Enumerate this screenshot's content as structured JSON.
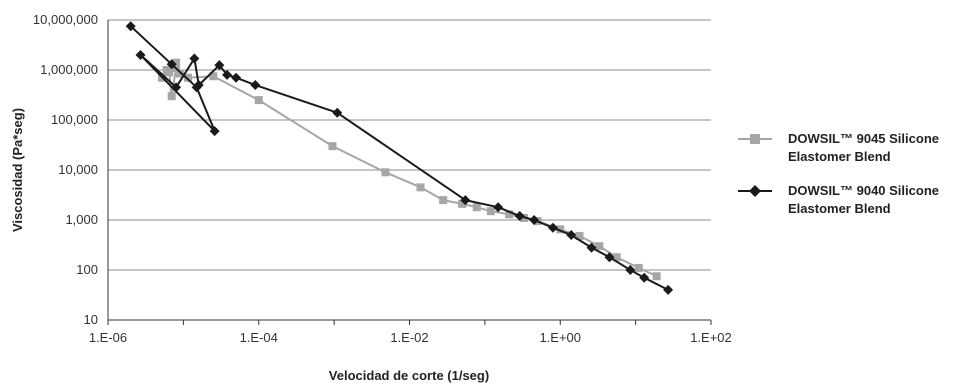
{
  "chart_data": {
    "type": "line",
    "title": "",
    "xlabel": "Velocidad de corte (1/seg)",
    "ylabel": "Viscosidad (Pa*seg)",
    "x_scale": "log",
    "y_scale": "log",
    "xlim": [
      1e-06,
      100
    ],
    "ylim": [
      10,
      10000000
    ],
    "grid": "horizontal",
    "legend_position": "right",
    "x_ticks": [
      "1.E-06",
      "1.E-04",
      "1.E-02",
      "1.E+00",
      "1.E+02"
    ],
    "y_ticks": [
      "10",
      "100",
      "1,000",
      "10,000",
      "100,000",
      "1,000,000",
      "10,000,000"
    ],
    "series": [
      {
        "name": "DOWSIL™ 9045 Silicone Elastomer Blend",
        "color": "#a6a6a6",
        "marker": "square",
        "x": [
          5.2e-06,
          6e-06,
          8e-06,
          6.5e-06,
          7e-06,
          8e-06,
          9e-06,
          1.15e-05,
          2.5e-05,
          0.0001,
          0.00095,
          0.0048,
          0.014,
          0.028,
          0.05,
          0.078,
          0.12,
          0.21,
          0.33,
          0.5,
          1.0,
          1.8,
          3.3,
          5.6,
          11,
          19
        ],
        "y": [
          700000,
          1000000,
          1400000,
          900000,
          300000,
          1100000,
          850000,
          700000,
          750000,
          250000,
          30000,
          9000,
          4500,
          2500,
          2100,
          1800,
          1500,
          1300,
          1100,
          950,
          650,
          480,
          300,
          180,
          110,
          75
        ]
      },
      {
        "name": "DOWSIL™ 9040 Silicone Elastomer Blend",
        "color": "#1a1a1a",
        "marker": "diamond",
        "x": [
          2e-06,
          7e-06,
          1.5e-05,
          2.6e-05,
          2.7e-06,
          8e-06,
          1.4e-05,
          1.6e-05,
          3e-05,
          3.8e-05,
          5e-05,
          9e-05,
          0.0011,
          0.055,
          0.15,
          0.29,
          0.45,
          0.8,
          1.4,
          2.6,
          4.5,
          8.5,
          13,
          27
        ],
        "y": [
          7500000,
          1300000,
          450000,
          60000,
          2000000,
          450000,
          1700000,
          500000,
          1250000,
          800000,
          700000,
          500000,
          140000,
          2500,
          1800,
          1200,
          1000,
          700,
          500,
          280,
          180,
          100,
          70,
          40
        ]
      }
    ]
  }
}
